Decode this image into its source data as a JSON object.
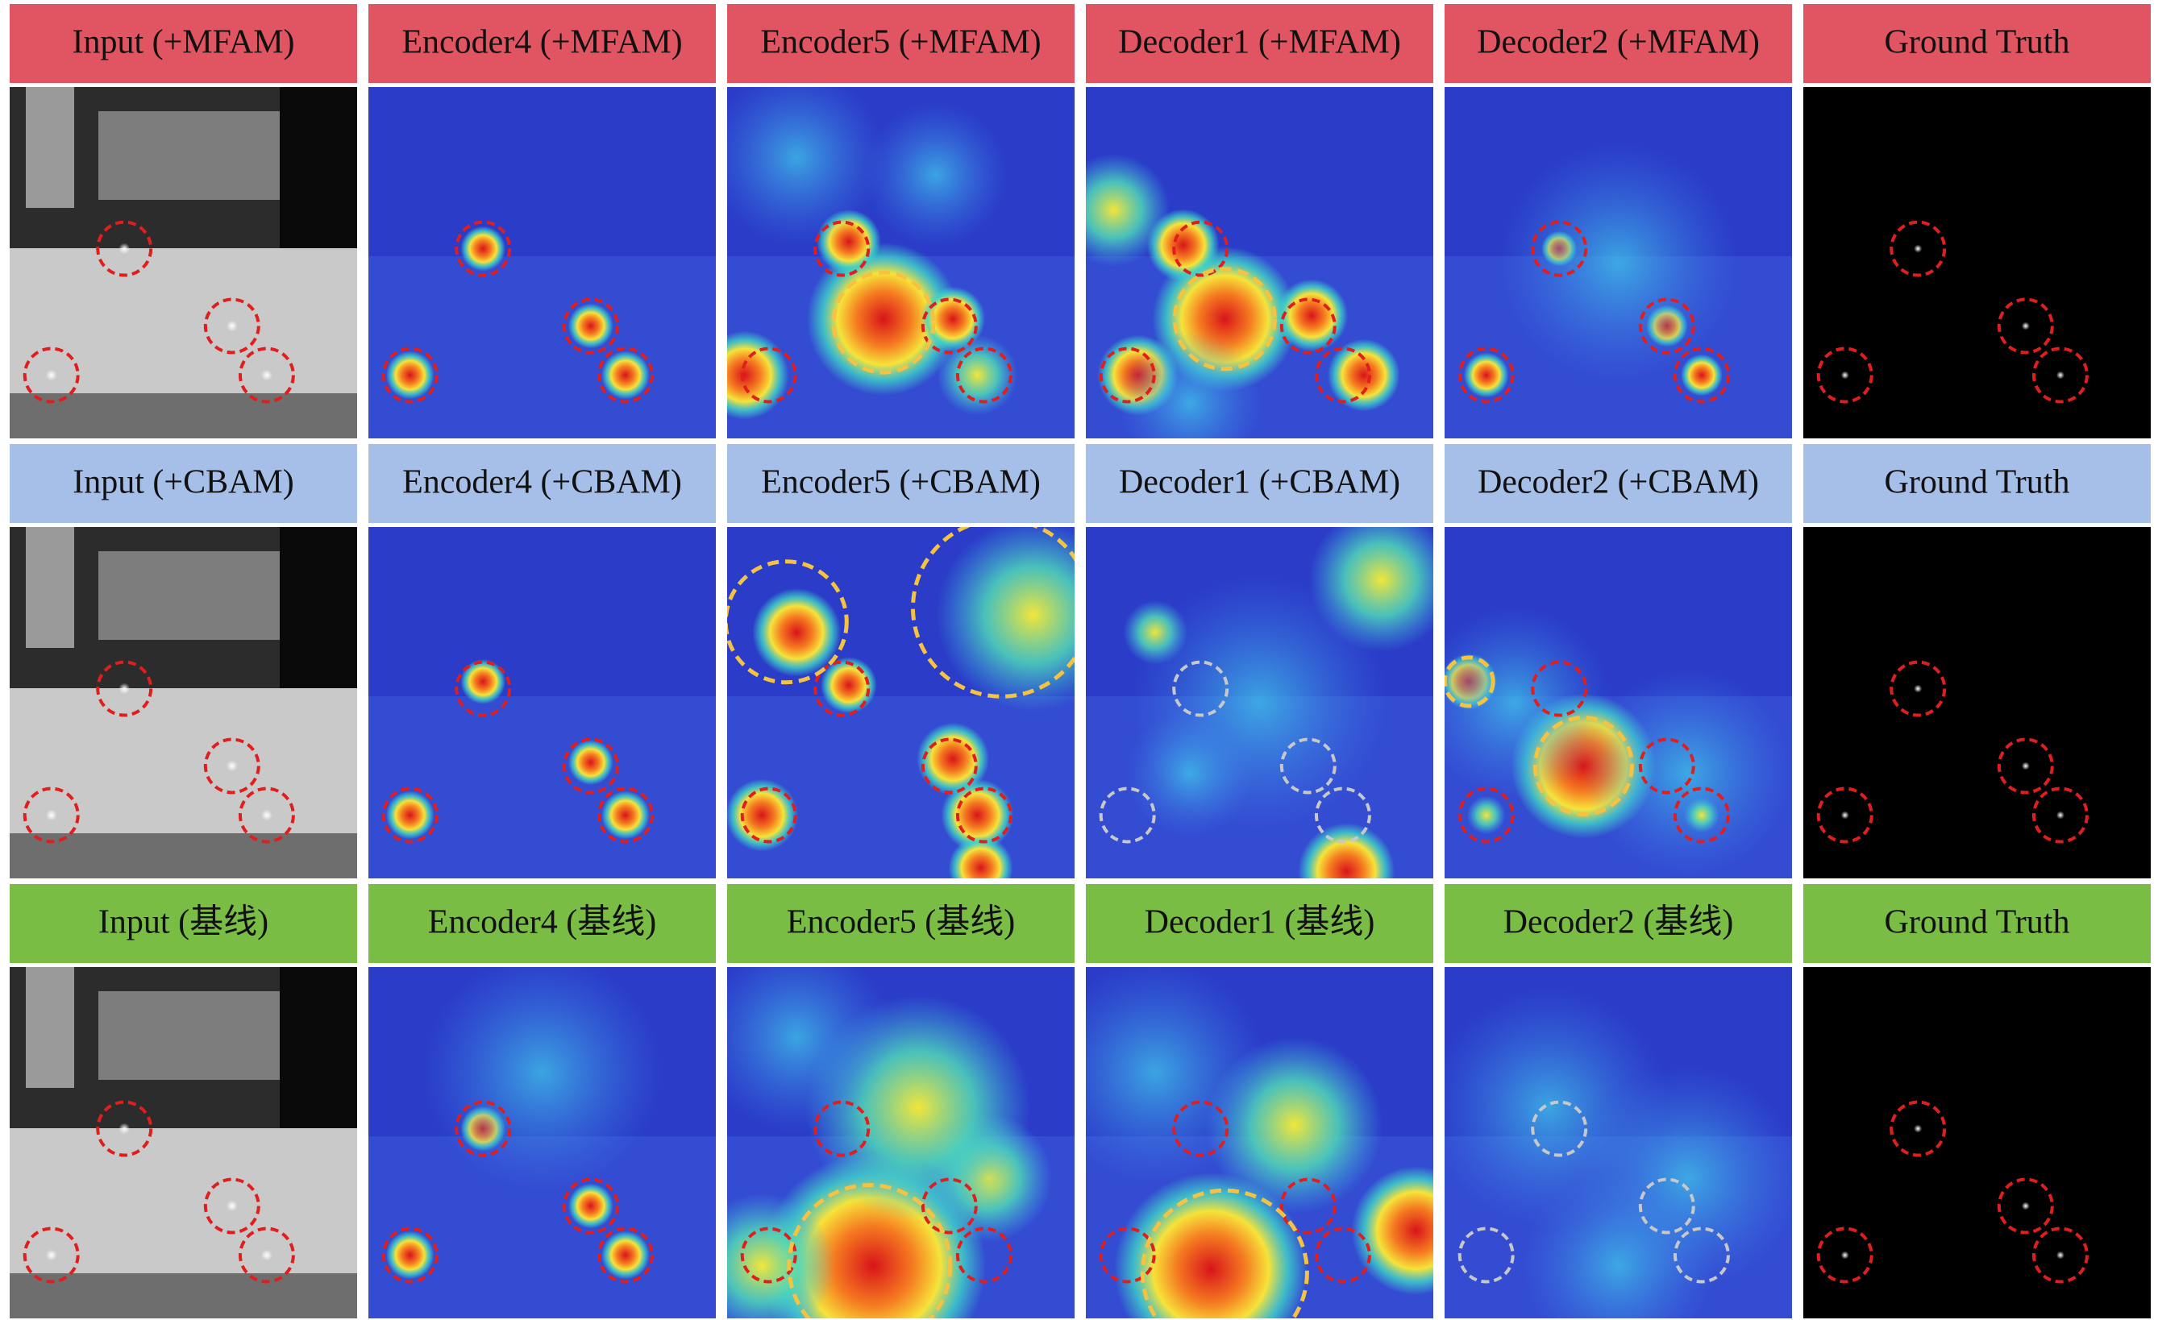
{
  "rows": [
    {
      "labels": [
        "Input (+MFAM)",
        "Encoder4 (+MFAM)",
        "Encoder5 (+MFAM)",
        "Decoder1 (+MFAM)",
        "Decoder2 (+MFAM)",
        "Ground Truth"
      ]
    },
    {
      "labels": [
        "Input (+CBAM)",
        "Encoder4 (+CBAM)",
        "Encoder5 (+CBAM)",
        "Decoder1 (+CBAM)",
        "Decoder2 (+CBAM)",
        "Ground Truth"
      ]
    },
    {
      "labels": [
        "Input (基线)",
        "Encoder4 (基线)",
        "Encoder5 (基线)",
        "Decoder1 (基线)",
        "Decoder2 (基线)",
        "Ground Truth"
      ]
    }
  ]
}
